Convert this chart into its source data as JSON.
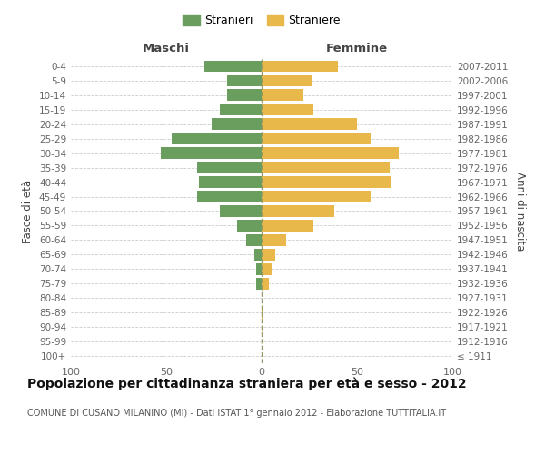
{
  "age_groups": [
    "100+",
    "95-99",
    "90-94",
    "85-89",
    "80-84",
    "75-79",
    "70-74",
    "65-69",
    "60-64",
    "55-59",
    "50-54",
    "45-49",
    "40-44",
    "35-39",
    "30-34",
    "25-29",
    "20-24",
    "15-19",
    "10-14",
    "5-9",
    "0-4"
  ],
  "birth_years": [
    "≤ 1911",
    "1912-1916",
    "1917-1921",
    "1922-1926",
    "1927-1931",
    "1932-1936",
    "1937-1941",
    "1942-1946",
    "1947-1951",
    "1952-1956",
    "1957-1961",
    "1962-1966",
    "1967-1971",
    "1972-1976",
    "1977-1981",
    "1982-1986",
    "1987-1991",
    "1992-1996",
    "1997-2001",
    "2002-2006",
    "2007-2011"
  ],
  "males": [
    0,
    0,
    0,
    0,
    0,
    3,
    3,
    4,
    8,
    13,
    22,
    34,
    33,
    34,
    53,
    47,
    26,
    22,
    18,
    18,
    30
  ],
  "females": [
    0,
    0,
    0,
    1,
    0,
    4,
    5,
    7,
    13,
    27,
    38,
    57,
    68,
    67,
    72,
    57,
    50,
    27,
    22,
    26,
    40
  ],
  "male_color": "#6a9e5f",
  "female_color": "#e8b84b",
  "background_color": "#ffffff",
  "grid_color": "#cccccc",
  "male_label": "Stranieri",
  "female_label": "Straniere",
  "maschi_label": "Maschi",
  "femmine_label": "Femmine",
  "fasce_label": "Fasce di età",
  "anni_label": "Anni di nascita",
  "xlim": 100,
  "title": "Popolazione per cittadinanza straniera per età e sesso - 2012",
  "subtitle": "COMUNE DI CUSANO MILANINO (MI) - Dati ISTAT 1° gennaio 2012 - Elaborazione TUTTITALIA.IT",
  "title_fontsize": 10,
  "subtitle_fontsize": 7
}
